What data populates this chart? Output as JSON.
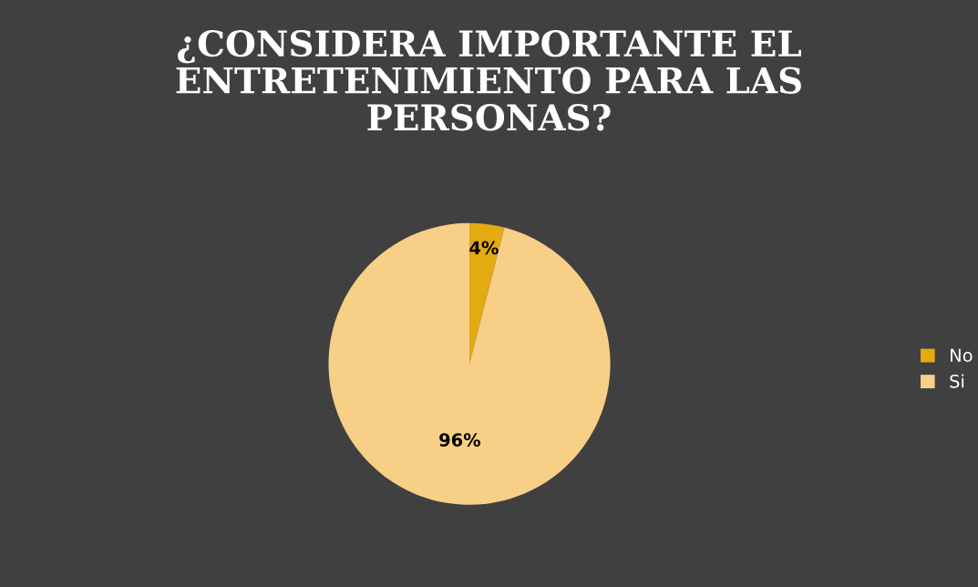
{
  "chart_data": {
    "type": "pie",
    "title": "¿CONSIDERA IMPORTANTE EL ENTRETENIMIENTO PARA LAS PERSONAS?",
    "categories": [
      "No",
      "Si"
    ],
    "values": [
      4,
      96
    ],
    "colors": [
      "#e3aa12",
      "#f8cf86"
    ],
    "value_labels": [
      "4%",
      "96%"
    ],
    "legend": "right"
  }
}
